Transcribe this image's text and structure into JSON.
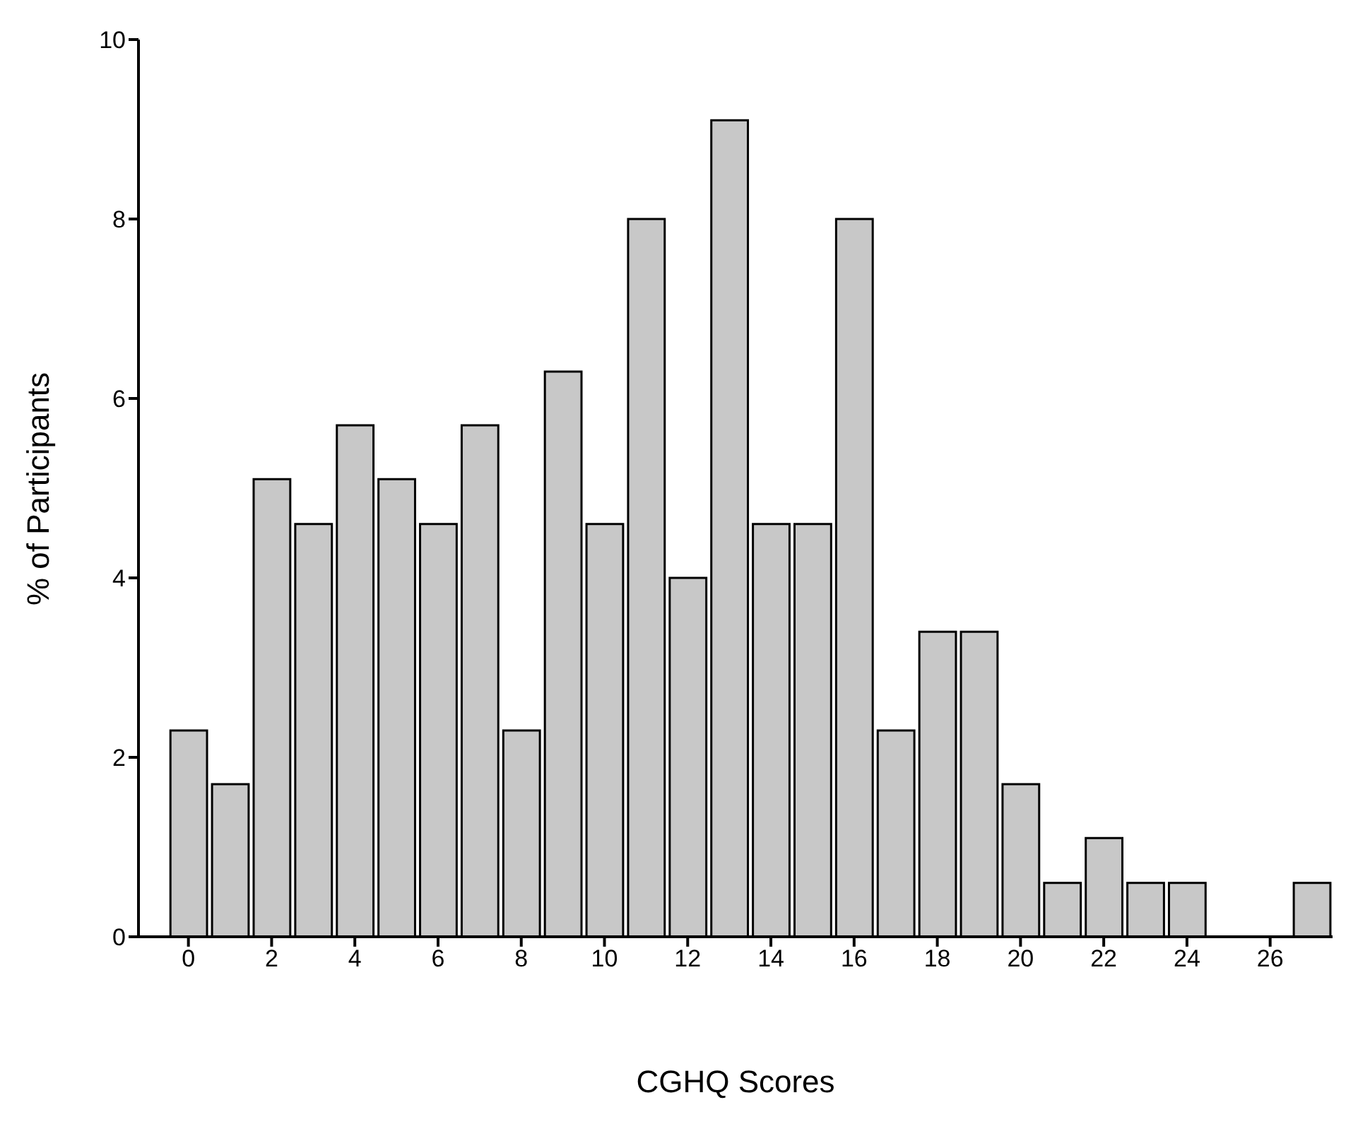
{
  "chart_data": {
    "type": "histogram",
    "xlabel": "CGHQ Scores",
    "ylabel": "% of Participants",
    "bins": [
      -0.5,
      0.5,
      1.5,
      2.5,
      3.5,
      4.5,
      5.5,
      6.5,
      7.5,
      8.5,
      9.5,
      10.5,
      11.5,
      12.5,
      13.5,
      14.5,
      15.5,
      16.5,
      17.5,
      18.5,
      19.5,
      20.5,
      21.5,
      22.5,
      23.5,
      24.5,
      25.5,
      26.5,
      27.5
    ],
    "values": [
      2.3,
      1.7,
      5.1,
      4.6,
      5.7,
      5.1,
      4.6,
      5.7,
      2.3,
      6.3,
      4.6,
      8,
      4,
      9.1,
      4.6,
      4.6,
      8,
      2.3,
      3.4,
      3.4,
      1.7,
      0.6,
      1.1,
      0.6,
      0.6,
      0,
      0,
      0.6
    ],
    "color": "#c8c8c8",
    "xlim": [
      -1.2,
      27.5
    ],
    "xticks": [
      0,
      2,
      4,
      6,
      8,
      10,
      12,
      14,
      16,
      18,
      20,
      22,
      24,
      26
    ],
    "ylim": [
      0,
      10
    ],
    "yticks": [
      0,
      2,
      4,
      6,
      8,
      10
    ]
  }
}
